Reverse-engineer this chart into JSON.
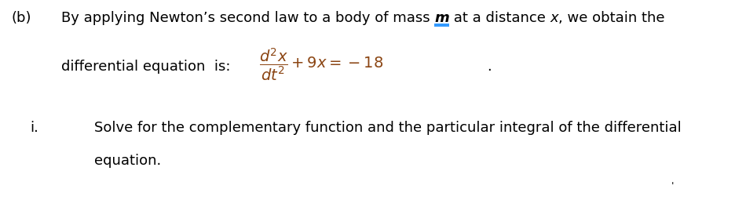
{
  "bg_color": "#ffffff",
  "label_b": "(b)",
  "line1_prefix": "By applying Newton’s second law to a body of mass ",
  "line1_m": "m",
  "line1_mid": " at a distance ",
  "line1_x": "x",
  "line1_end": ", we obtain the",
  "diff_eq_label": "differential equation  is:",
  "diff_eq_period": ".",
  "label_i": "i.",
  "line2": "Solve for the complementary function and the particular integral of the differential",
  "line3": "equation.",
  "font_size": 13,
  "font_family": "DejaVu Sans",
  "text_color": "#000000",
  "math_color": "#8B4513",
  "underline_color": "#1E90FF",
  "fig_width": 9.5,
  "fig_height": 2.69,
  "dpi": 100
}
